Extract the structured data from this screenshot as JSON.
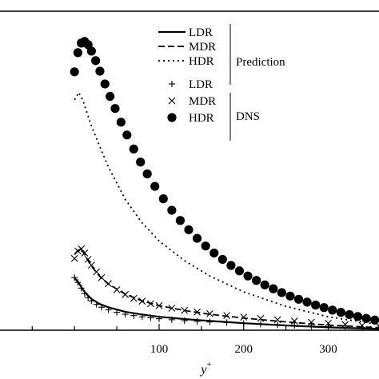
{
  "chart_data": {
    "type": "line",
    "xlabel": "y",
    "xlabel_sup": "+",
    "xlim": [
      -90,
      360
    ],
    "ylim": [
      0,
      1
    ],
    "x_ticks": [
      100,
      200,
      300
    ],
    "grid": false,
    "legend": {
      "placement": "top-right",
      "groups": [
        {
          "label": "Prediction",
          "entries": [
            "LDR",
            "MDR",
            "HDR"
          ]
        },
        {
          "label": "DNS",
          "entries": [
            "LDR",
            "MDR",
            "HDR"
          ]
        }
      ]
    },
    "series": [
      {
        "name": "LDR",
        "group": "Prediction",
        "style": "solid",
        "x": [
          0,
          5,
          10,
          15,
          20,
          30,
          40,
          60,
          80,
          100,
          130,
          160,
          200,
          250,
          300,
          360
        ],
        "y": [
          0.164,
          0.148,
          0.127,
          0.111,
          0.098,
          0.082,
          0.072,
          0.058,
          0.049,
          0.042,
          0.035,
          0.029,
          0.022,
          0.015,
          0.009,
          0.004
        ]
      },
      {
        "name": "MDR",
        "group": "Prediction",
        "style": "dashed",
        "x": [
          0,
          5,
          10,
          15,
          20,
          30,
          40,
          60,
          80,
          100,
          130,
          160,
          200,
          250,
          300,
          360
        ],
        "y": [
          0.237,
          0.254,
          0.246,
          0.223,
          0.201,
          0.168,
          0.145,
          0.113,
          0.092,
          0.077,
          0.062,
          0.05,
          0.038,
          0.026,
          0.016,
          0.008
        ]
      },
      {
        "name": "HDR",
        "group": "Prediction",
        "style": "dotted",
        "x": [
          0,
          5,
          10,
          15,
          20,
          30,
          40,
          60,
          80,
          100,
          130,
          160,
          200,
          250,
          300,
          360
        ],
        "y": [
          0.722,
          0.745,
          0.72,
          0.679,
          0.64,
          0.575,
          0.512,
          0.41,
          0.336,
          0.28,
          0.218,
          0.17,
          0.12,
          0.075,
          0.042,
          0.018
        ]
      },
      {
        "name": "LDR",
        "group": "DNS",
        "marker": "plus",
        "x": [
          0,
          4,
          8,
          12,
          16,
          20,
          26,
          32,
          40,
          50,
          60,
          70,
          80,
          90,
          100,
          115,
          130,
          145,
          160,
          180,
          200,
          220,
          240,
          260,
          280,
          300,
          320,
          340,
          360
        ],
        "y": [
          0.165,
          0.15,
          0.132,
          0.115,
          0.102,
          0.092,
          0.081,
          0.072,
          0.064,
          0.056,
          0.05,
          0.046,
          0.042,
          0.039,
          0.036,
          0.033,
          0.03,
          0.028,
          0.026,
          0.024,
          0.021,
          0.019,
          0.017,
          0.015,
          0.013,
          0.011,
          0.009,
          0.008,
          0.007
        ]
      },
      {
        "name": "MDR",
        "group": "DNS",
        "marker": "cross",
        "x": [
          0,
          4,
          8,
          12,
          16,
          20,
          26,
          32,
          40,
          50,
          60,
          70,
          80,
          90,
          100,
          115,
          130,
          145,
          160,
          180,
          200,
          220,
          240,
          260,
          280,
          300,
          320,
          340,
          360
        ],
        "y": [
          0.225,
          0.248,
          0.255,
          0.242,
          0.222,
          0.204,
          0.183,
          0.165,
          0.146,
          0.127,
          0.112,
          0.1,
          0.091,
          0.083,
          0.077,
          0.069,
          0.062,
          0.057,
          0.052,
          0.046,
          0.041,
          0.037,
          0.033,
          0.029,
          0.025,
          0.022,
          0.018,
          0.015,
          0.012
        ]
      },
      {
        "name": "HDR",
        "group": "DNS",
        "marker": "circle",
        "x": [
          0,
          4,
          8,
          12,
          16,
          20,
          25,
          30,
          36,
          42,
          48,
          55,
          62,
          70,
          78,
          86,
          95,
          105,
          115,
          125,
          135,
          145,
          155,
          165,
          175,
          185,
          195,
          205,
          215,
          225,
          235,
          245,
          255,
          265,
          275,
          285,
          295,
          305,
          315,
          325,
          335,
          345,
          355
        ],
        "y": [
          0.81,
          0.87,
          0.9,
          0.905,
          0.895,
          0.875,
          0.845,
          0.812,
          0.772,
          0.733,
          0.695,
          0.652,
          0.612,
          0.568,
          0.527,
          0.49,
          0.451,
          0.412,
          0.376,
          0.344,
          0.315,
          0.288,
          0.264,
          0.242,
          0.222,
          0.203,
          0.186,
          0.17,
          0.156,
          0.142,
          0.13,
          0.118,
          0.107,
          0.097,
          0.088,
          0.079,
          0.071,
          0.063,
          0.056,
          0.049,
          0.043,
          0.037,
          0.032
        ]
      }
    ]
  }
}
